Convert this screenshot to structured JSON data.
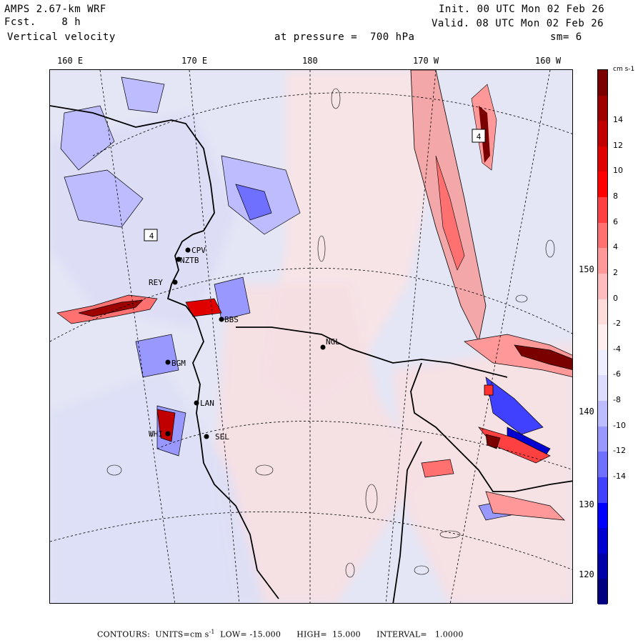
{
  "header": {
    "model": "AMPS 2.67-km WRF",
    "fcst_label": "Fcst.",
    "fcst_value": "8 h",
    "field": "Vertical velocity",
    "level_label": "at pressure =",
    "level_value": "700 hPa",
    "init": "Init. 00 UTC Mon 02 Feb 26",
    "valid": "Valid. 08 UTC Mon 02 Feb 26",
    "smoothing": "sm= 6"
  },
  "longitude_labels": [
    "160 E",
    "170 E",
    "180",
    "170 W",
    "160 W"
  ],
  "latitude_labels": [
    "150 W",
    "140 W",
    "130 W",
    "120 W"
  ],
  "stations": [
    {
      "id": "CPV"
    },
    {
      "id": "NZTB"
    },
    {
      "id": "REY"
    },
    {
      "id": "BBS"
    },
    {
      "id": "NGL"
    },
    {
      "id": "BGM"
    },
    {
      "id": "LAN"
    },
    {
      "id": "WHI"
    },
    {
      "id": "SEL"
    }
  ],
  "markers": [
    {
      "label": "4",
      "kind": "max"
    },
    {
      "label": "4",
      "kind": "max"
    }
  ],
  "colorbar": {
    "units": "cm s-1",
    "labels": [
      "14",
      "12",
      "10",
      "8",
      "6",
      "4",
      "2",
      "0",
      "-2",
      "-4",
      "-6",
      "-8",
      "-10",
      "-12",
      "-14"
    ],
    "colors": [
      "#7a0000",
      "#9e0000",
      "#c00000",
      "#e00000",
      "#ff0000",
      "#ff4040",
      "#ff7070",
      "#ff9898",
      "#ffbcbc",
      "#ffdcdc",
      "#ffeeee",
      "#eeeefe",
      "#dcdcff",
      "#bcbcff",
      "#9898ff",
      "#7070ff",
      "#4040ff",
      "#0000ff",
      "#0000d0",
      "#0000a8",
      "#000080"
    ]
  },
  "footer": {
    "contours": "CONTOURS:",
    "units_label": "UNITS=cm s",
    "units_exp": "-1",
    "low": "LOW= -15.000",
    "high": "HIGH=  15.000",
    "interval": "INTERVAL=   1.0000"
  }
}
